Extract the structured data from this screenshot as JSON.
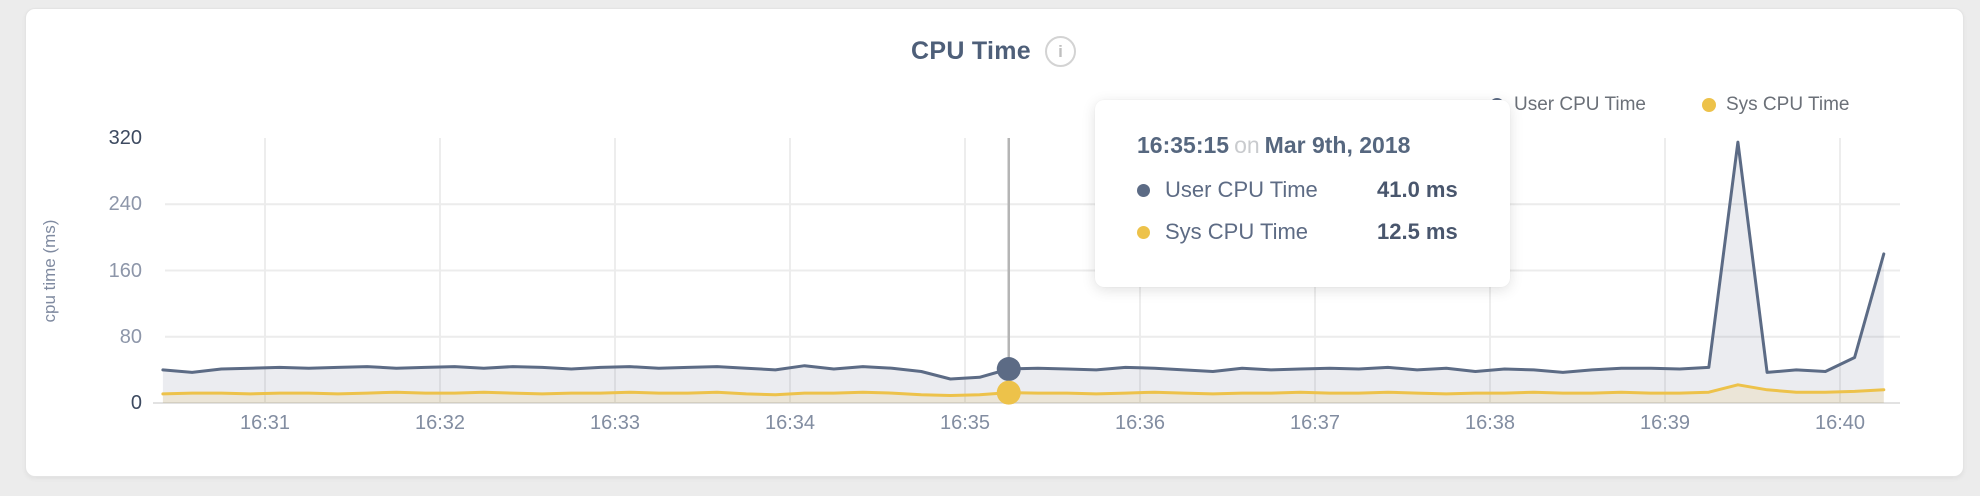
{
  "page": {
    "background": "#ececec"
  },
  "chart": {
    "title": "CPU Time",
    "info_icon": {
      "glyph": "i"
    },
    "y_axis": {
      "title": "cpu time (ms)",
      "ticks": [
        320,
        240,
        160,
        80,
        0
      ]
    },
    "x_axis": {
      "labels": [
        "16:31",
        "16:32",
        "16:33",
        "16:34",
        "16:35",
        "16:36",
        "16:37",
        "16:38",
        "16:39",
        "16:40"
      ]
    },
    "legend": [
      {
        "label": "User CPU Time",
        "color": "#5c6b85"
      },
      {
        "label": "Sys CPU Time",
        "color": "#edc24a"
      }
    ]
  },
  "tooltip": {
    "time": "16:35:15",
    "connector": "on",
    "date": "Mar 9th, 2018",
    "rows": [
      {
        "label": "User CPU Time",
        "value": "41.0 ms",
        "color": "#5c6b85"
      },
      {
        "label": "Sys CPU Time",
        "value": "12.5 ms",
        "color": "#edc24a"
      }
    ]
  },
  "chart_data": {
    "type": "area",
    "title": "CPU Time",
    "xlabel": "",
    "ylabel": "cpu time (ms)",
    "ylim": [
      0,
      320
    ],
    "y_ticks": [
      0,
      80,
      160,
      240,
      320
    ],
    "grid": true,
    "legend_position": "top-right",
    "x": [
      "16:30:25",
      "16:30:35",
      "16:30:45",
      "16:30:55",
      "16:31:05",
      "16:31:15",
      "16:31:25",
      "16:31:35",
      "16:31:45",
      "16:31:55",
      "16:32:05",
      "16:32:15",
      "16:32:25",
      "16:32:35",
      "16:32:45",
      "16:32:55",
      "16:33:05",
      "16:33:15",
      "16:33:25",
      "16:33:35",
      "16:33:45",
      "16:33:55",
      "16:34:05",
      "16:34:15",
      "16:34:25",
      "16:34:35",
      "16:34:45",
      "16:34:55",
      "16:35:05",
      "16:35:15",
      "16:35:25",
      "16:35:35",
      "16:35:45",
      "16:35:55",
      "16:36:05",
      "16:36:15",
      "16:36:25",
      "16:36:35",
      "16:36:45",
      "16:36:55",
      "16:37:05",
      "16:37:15",
      "16:37:25",
      "16:37:35",
      "16:37:45",
      "16:37:55",
      "16:38:05",
      "16:38:15",
      "16:38:25",
      "16:38:35",
      "16:38:45",
      "16:38:55",
      "16:39:05",
      "16:39:15",
      "16:39:25",
      "16:39:35",
      "16:39:45",
      "16:39:55",
      "16:40:05",
      "16:40:15"
    ],
    "series": [
      {
        "name": "User CPU Time",
        "color": "#5c6b85",
        "fill": "rgba(99,112,138,0.13)",
        "values": [
          40,
          37,
          41,
          42,
          43,
          42,
          43,
          44,
          42,
          43,
          44,
          42,
          44,
          43,
          41,
          43,
          44,
          42,
          43,
          44,
          42,
          40,
          45,
          41,
          44,
          42,
          38,
          29,
          31,
          41,
          42,
          41,
          40,
          43,
          42,
          40,
          38,
          42,
          40,
          41,
          42,
          41,
          43,
          40,
          42,
          38,
          41,
          40,
          37,
          40,
          42,
          42,
          41,
          43,
          315,
          37,
          40,
          38,
          55,
          180
        ]
      },
      {
        "name": "Sys CPU Time",
        "color": "#edc24a",
        "fill": "rgba(237,194,74,0.15)",
        "values": [
          11,
          12,
          12,
          11,
          12,
          12,
          11,
          12,
          13,
          12,
          12,
          13,
          12,
          11,
          12,
          12,
          13,
          12,
          12,
          13,
          11,
          10,
          12,
          12,
          13,
          12,
          10,
          9,
          10,
          12.5,
          12,
          12,
          11,
          12,
          13,
          12,
          11,
          12,
          12,
          13,
          12,
          12,
          13,
          12,
          11,
          12,
          12,
          13,
          12,
          12,
          13,
          12,
          12,
          13,
          22,
          16,
          13,
          13,
          14,
          16
        ]
      }
    ],
    "highlight": {
      "time": "16:35:15",
      "values": [
        41.0,
        12.5
      ]
    }
  }
}
